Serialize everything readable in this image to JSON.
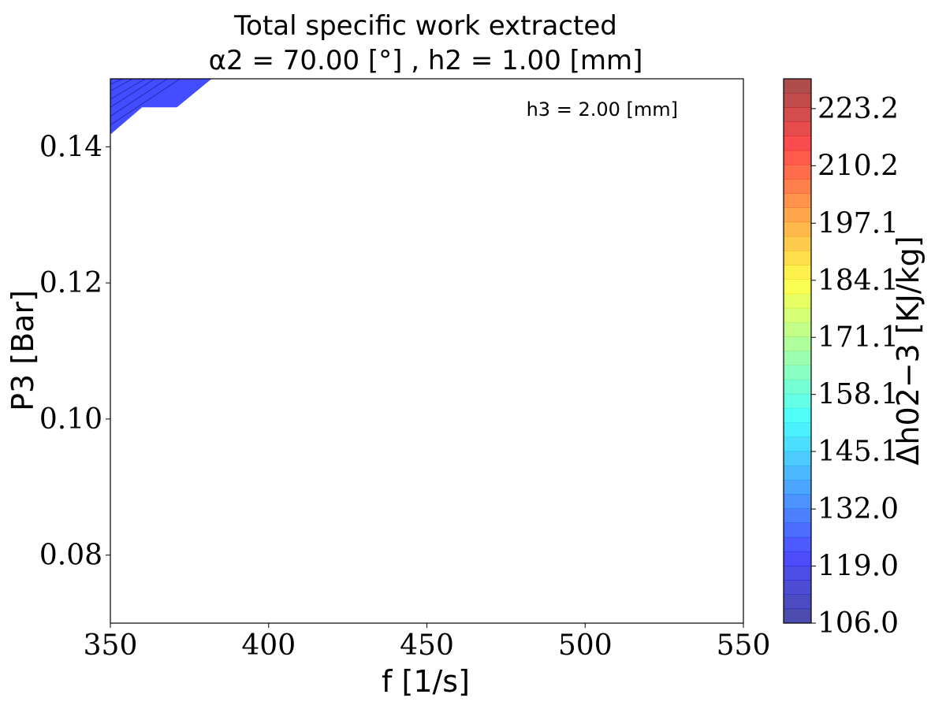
{
  "chart_data": {
    "type": "heatmap",
    "subtype": "filled-contour",
    "title": "Total specific work extracted",
    "subtitle": "α2 = 70.00 [°] , h2 = 1.00 [mm]",
    "annotation": "h3 = 2.00 [mm]",
    "xlabel": "f [1/s]",
    "ylabel": "P3 [Bar]",
    "colorbar_label": "Δh02−3 [KJ/kg]",
    "xlim": [
      350,
      550
    ],
    "ylim": [
      0.07,
      0.15
    ],
    "xticks": [
      "350",
      "400",
      "450",
      "500",
      "550"
    ],
    "yticks": [
      "0.08",
      "0.10",
      "0.12",
      "0.14"
    ],
    "colorbar": {
      "range": [
        106.0,
        230.0
      ],
      "ticks": [
        "106.0",
        "119.0",
        "132.0",
        "145.1",
        "158.1",
        "171.1",
        "184.1",
        "197.1",
        "210.2",
        "223.2"
      ],
      "levels": 38,
      "colormap": "jet",
      "alpha": 0.7
    },
    "filled_region": {
      "description_values": "Contour data present only near f≈350–380, P3≈0.142–0.15",
      "boundary": [
        [
          350,
          0.1418
        ],
        [
          360,
          0.1458
        ],
        [
          371,
          0.1458
        ],
        [
          382,
          0.15
        ],
        [
          350,
          0.15
        ]
      ],
      "value_range": [
        113,
        128
      ],
      "contour_lines": [
        [
          [
            350,
            0.1432
          ],
          [
            372,
            0.15
          ]
        ],
        [
          [
            350,
            0.1445
          ],
          [
            368,
            0.15
          ]
        ],
        [
          [
            350,
            0.1458
          ],
          [
            364,
            0.15
          ]
        ],
        [
          [
            350,
            0.147
          ],
          [
            361,
            0.15
          ]
        ],
        [
          [
            350,
            0.1482
          ],
          [
            357,
            0.15
          ]
        ],
        [
          [
            350,
            0.1492
          ],
          [
            354,
            0.15
          ]
        ]
      ]
    },
    "colors": {
      "region_fill": "#2f3aff",
      "contour_line": "#1a1a8c"
    }
  }
}
